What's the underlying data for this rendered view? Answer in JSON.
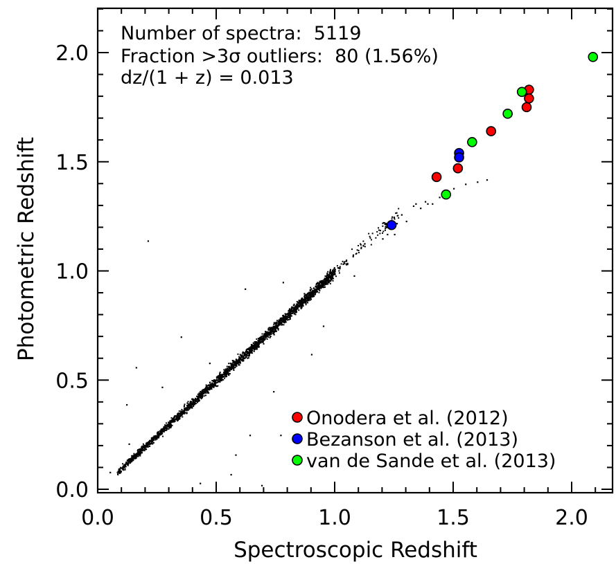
{
  "chart_data": {
    "type": "scatter",
    "title": "",
    "xlabel": "Spectroscopic Redshift",
    "ylabel": "Photometric Redshift",
    "xlim": [
      0.0,
      2.2
    ],
    "ylim": [
      -0.05,
      2.2
    ],
    "x_ticks": [
      "0.0",
      "0.5",
      "1.0",
      "1.5",
      "2.0"
    ],
    "y_ticks": [
      "0.0",
      "0.5",
      "1.0",
      "1.5",
      "2.0"
    ],
    "grid": false,
    "legend_position": "bottom-right",
    "annotations": [
      "Number of spectra:  5119",
      "Fraction >3σ outliers:  80 (1.56%)",
      "dz/(1 + z) = 0.013"
    ],
    "background_sample": {
      "description_color": "#000000",
      "count": 5119,
      "relation": "one-to-one with scatter dz/(1+z) = 0.013",
      "x_range": [
        0.05,
        1.27
      ],
      "outliers": [
        {
          "x": 0.21,
          "y": 1.14
        },
        {
          "x": 0.16,
          "y": 0.56
        },
        {
          "x": 0.13,
          "y": 0.21
        },
        {
          "x": 0.05,
          "y": 0.08
        },
        {
          "x": 0.56,
          "y": 0.07
        },
        {
          "x": 0.69,
          "y": 0.02
        },
        {
          "x": 0.43,
          "y": 0.03
        },
        {
          "x": 0.47,
          "y": 0.58
        },
        {
          "x": 0.35,
          "y": 0.7
        },
        {
          "x": 0.64,
          "y": 0.25
        },
        {
          "x": 0.58,
          "y": 0.16
        },
        {
          "x": 0.74,
          "y": 0.45
        },
        {
          "x": 0.77,
          "y": 0.25
        },
        {
          "x": 0.12,
          "y": 0.39
        },
        {
          "x": 0.27,
          "y": 0.47
        },
        {
          "x": 1.41,
          "y": 1.31
        },
        {
          "x": 1.36,
          "y": 1.29
        },
        {
          "x": 1.45,
          "y": 1.35
        },
        {
          "x": 1.5,
          "y": 1.38
        },
        {
          "x": 1.55,
          "y": 1.4
        },
        {
          "x": 1.3,
          "y": 1.23
        },
        {
          "x": 1.28,
          "y": 1.26
        },
        {
          "x": 1.22,
          "y": 1.17
        },
        {
          "x": 1.21,
          "y": 1.19
        },
        {
          "x": 1.2,
          "y": 1.15
        },
        {
          "x": 1.25,
          "y": 1.17
        },
        {
          "x": 1.26,
          "y": 1.22
        },
        {
          "x": 1.24,
          "y": 1.25
        },
        {
          "x": 1.33,
          "y": 1.3
        },
        {
          "x": 1.34,
          "y": 1.31
        },
        {
          "x": 1.38,
          "y": 1.32
        },
        {
          "x": 1.39,
          "y": 1.31
        },
        {
          "x": 1.44,
          "y": 1.34
        },
        {
          "x": 1.6,
          "y": 1.41
        },
        {
          "x": 1.64,
          "y": 1.42
        },
        {
          "x": 1.08,
          "y": 0.98
        },
        {
          "x": 0.9,
          "y": 0.62
        },
        {
          "x": 0.95,
          "y": 0.75
        },
        {
          "x": 0.62,
          "y": 0.92
        },
        {
          "x": 0.78,
          "y": 0.95
        }
      ]
    },
    "series": [
      {
        "name": "Onodera et al. (2012)",
        "color": "#ff0000",
        "points": [
          {
            "x": 1.43,
            "y": 1.43
          },
          {
            "x": 1.52,
            "y": 1.47
          },
          {
            "x": 1.66,
            "y": 1.64
          },
          {
            "x": 1.82,
            "y": 1.83
          },
          {
            "x": 1.82,
            "y": 1.79
          },
          {
            "x": 1.81,
            "y": 1.75
          }
        ]
      },
      {
        "name": "Bezanson et al. (2013)",
        "color": "#0000ff",
        "points": [
          {
            "x": 1.24,
            "y": 1.21
          },
          {
            "x": 1.525,
            "y": 1.54
          },
          {
            "x": 1.525,
            "y": 1.52
          }
        ]
      },
      {
        "name": "van de Sande et al. (2013)",
        "color": "#00ff00",
        "points": [
          {
            "x": 1.47,
            "y": 1.35
          },
          {
            "x": 1.58,
            "y": 1.59
          },
          {
            "x": 1.73,
            "y": 1.72
          },
          {
            "x": 1.79,
            "y": 1.82
          },
          {
            "x": 2.09,
            "y": 1.98
          }
        ]
      }
    ]
  }
}
